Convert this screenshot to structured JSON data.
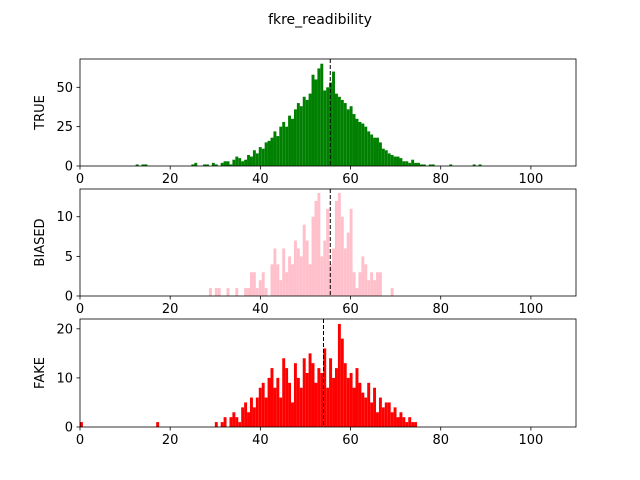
{
  "figure": {
    "title": "fkre_readibility"
  },
  "chart_data": [
    {
      "type": "bar",
      "ylabel": "TRUE",
      "color": "#008000",
      "xlim": [
        0,
        110
      ],
      "ylim": [
        0,
        68
      ],
      "xticks": [
        0,
        20,
        40,
        60,
        80,
        100
      ],
      "yticks": [
        0,
        25,
        50
      ],
      "mean_line": 55.5,
      "bin_start": 0,
      "bin_width": 0.65,
      "values": [
        0,
        0,
        0,
        0,
        0,
        0,
        0,
        0,
        0,
        0,
        0,
        0,
        0,
        0,
        0,
        0,
        0,
        0,
        0,
        1,
        0,
        1,
        1,
        0,
        0,
        0,
        0,
        0,
        0,
        0,
        0,
        0,
        0,
        0,
        0,
        0,
        0,
        0,
        1,
        2,
        0,
        0,
        1,
        1,
        0,
        2,
        1,
        0,
        2,
        3,
        3,
        1,
        4,
        6,
        5,
        3,
        4,
        7,
        6,
        10,
        8,
        12,
        11,
        15,
        16,
        18,
        22,
        19,
        25,
        28,
        25,
        32,
        30,
        36,
        40,
        38,
        44,
        42,
        46,
        58,
        55,
        62,
        65,
        48,
        50,
        53,
        60,
        46,
        44,
        42,
        40,
        36,
        38,
        33,
        30,
        28,
        27,
        25,
        22,
        20,
        18,
        18,
        15,
        11,
        10,
        8,
        7,
        6,
        6,
        5,
        3,
        3,
        2,
        4,
        2,
        2,
        1,
        1,
        0,
        1,
        1,
        0,
        0,
        0,
        0,
        0,
        1,
        0,
        0,
        0,
        0,
        0,
        0,
        0,
        1,
        0,
        1,
        0,
        0,
        0,
        0,
        0,
        0,
        0,
        0,
        0,
        0,
        0,
        0,
        0,
        0,
        0,
        0,
        0,
        0,
        0,
        0,
        0,
        0,
        0,
        0,
        0,
        0,
        0,
        0,
        0,
        0
      ]
    },
    {
      "type": "bar",
      "ylabel": "BIASED",
      "color": "#ffc0cb",
      "xlim": [
        0,
        110
      ],
      "ylim": [
        0,
        13.5
      ],
      "xticks": [
        0,
        20,
        40,
        60,
        80,
        100
      ],
      "yticks": [
        0,
        5,
        10
      ],
      "mean_line": 55.5,
      "bin_start": 0,
      "bin_width": 0.65,
      "values": [
        0,
        0,
        0,
        0,
        0,
        0,
        0,
        0,
        0,
        0,
        0,
        0,
        0,
        0,
        0,
        0,
        0,
        0,
        0,
        0,
        0,
        0,
        0,
        0,
        0,
        0,
        0,
        0,
        0,
        0,
        0,
        0,
        0,
        0,
        0,
        0,
        0,
        0,
        0,
        0,
        0,
        0,
        0,
        0,
        1,
        0,
        1,
        1,
        0,
        0,
        1,
        0,
        0,
        1,
        0,
        0,
        1,
        1,
        3,
        3,
        1,
        2,
        3,
        1,
        0,
        4,
        6,
        4,
        2,
        6,
        3,
        5,
        4,
        7,
        6,
        5,
        9,
        7,
        4,
        10,
        12,
        13,
        5,
        7,
        11,
        4,
        6,
        12,
        13,
        10,
        6,
        8,
        11,
        3,
        1,
        3,
        5,
        4,
        2,
        3,
        2,
        3,
        3,
        0,
        0,
        0,
        1,
        0,
        0,
        0,
        0,
        0,
        0,
        0,
        0,
        0,
        0,
        0,
        0,
        0,
        0,
        0,
        0,
        0,
        0,
        0,
        0,
        0,
        0,
        0,
        0,
        0,
        0,
        0,
        0,
        0,
        0,
        0,
        0,
        0,
        0,
        0,
        0,
        0,
        0,
        0,
        0,
        0,
        0,
        0,
        0,
        0,
        0,
        0,
        0,
        0,
        0,
        0,
        0,
        0,
        0,
        0,
        0,
        0,
        0,
        0,
        0,
        0,
        0,
        0
      ]
    },
    {
      "type": "bar",
      "ylabel": "FAKE",
      "color": "#ff0000",
      "xlim": [
        0,
        110
      ],
      "ylim": [
        0,
        22
      ],
      "xticks": [
        0,
        20,
        40,
        60,
        80,
        100
      ],
      "yticks": [
        0,
        10,
        20
      ],
      "mean_line": 54.0,
      "bin_start": 0,
      "bin_width": 0.65,
      "values": [
        1,
        0,
        0,
        0,
        0,
        0,
        0,
        0,
        0,
        0,
        0,
        0,
        0,
        0,
        0,
        0,
        0,
        0,
        0,
        0,
        0,
        0,
        0,
        0,
        0,
        0,
        1,
        0,
        0,
        0,
        0,
        0,
        0,
        0,
        0,
        0,
        0,
        0,
        0,
        0,
        0,
        0,
        0,
        0,
        0,
        0,
        1,
        0,
        1,
        2,
        0,
        2,
        3,
        2,
        1,
        4,
        5,
        3,
        6,
        4,
        6,
        8,
        9,
        6,
        10,
        12,
        8,
        10,
        6,
        14,
        12,
        9,
        5,
        13,
        10,
        8,
        14,
        11,
        15,
        13,
        9,
        12,
        11,
        16,
        8,
        14,
        10,
        12,
        21,
        18,
        13,
        10,
        11,
        8,
        12,
        9,
        7,
        6,
        9,
        5,
        8,
        3,
        6,
        4,
        5,
        5,
        3,
        4,
        2,
        3,
        2,
        1,
        2,
        1,
        1,
        0,
        0,
        0,
        0,
        0,
        0,
        0,
        0,
        0,
        0,
        0,
        0,
        0,
        0,
        0,
        0,
        0,
        0,
        0,
        0,
        0,
        0,
        0,
        0,
        0,
        0,
        0,
        0,
        0,
        0,
        0,
        0,
        0,
        0,
        0,
        0,
        0,
        0,
        0,
        0,
        0,
        0,
        0,
        0,
        0,
        0,
        0,
        0,
        0,
        0,
        0,
        0,
        0,
        0,
        0
      ]
    }
  ]
}
